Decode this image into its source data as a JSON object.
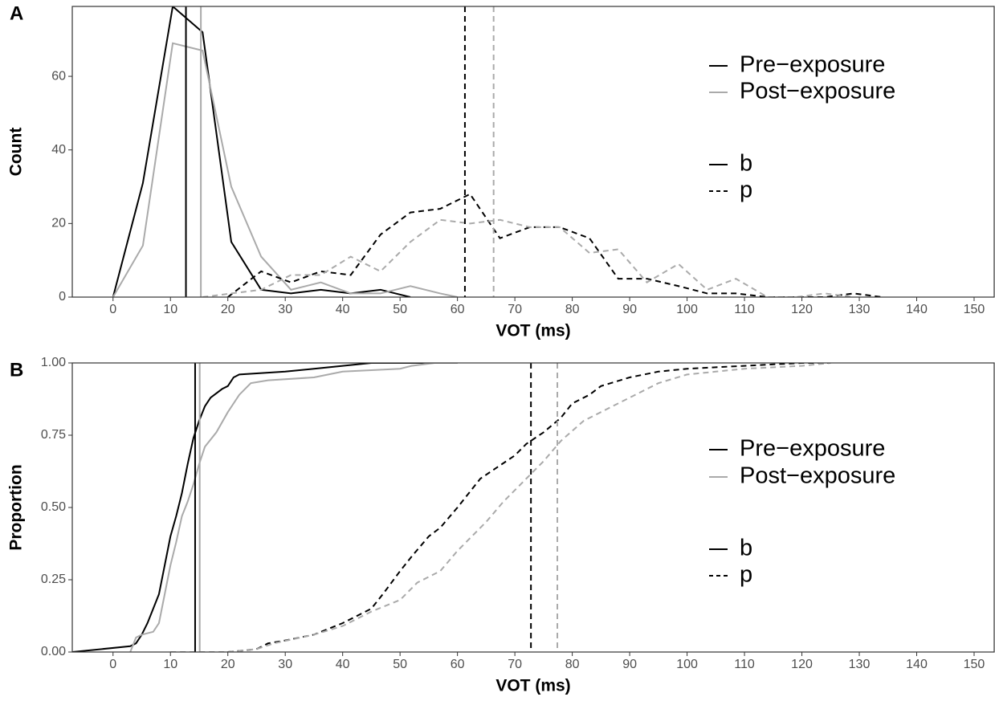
{
  "chart_data": [
    {
      "type": "line",
      "panel_label": "A",
      "x_label": "VOT (ms)",
      "y_label": "Count",
      "xlim": [
        -7.1,
        153.5
      ],
      "ylim": [
        0,
        79
      ],
      "xticks": [
        0,
        10,
        20,
        30,
        40,
        50,
        60,
        70,
        80,
        90,
        100,
        110,
        120,
        130,
        140,
        150
      ],
      "yticks": [
        0,
        20,
        40,
        60
      ],
      "legend": [
        {
          "name": "Pre−exposure",
          "color": "#000000"
        },
        {
          "name": "Post−exposure",
          "color": "#aaaaaa"
        }
      ],
      "linetype_legend": [
        {
          "name": "b",
          "dash": "solid"
        },
        {
          "name": "p",
          "dash": "dashed"
        }
      ],
      "series": [
        {
          "color": "#000000",
          "dash": "solid",
          "x": [
            0,
            5.2,
            10.4,
            15.6,
            20.6,
            25.8,
            31,
            36.2,
            41.4,
            46.6,
            51.8
          ],
          "values": [
            0,
            31,
            79,
            72,
            15,
            2,
            1,
            2,
            1,
            2,
            0
          ]
        },
        {
          "color": "#aaaaaa",
          "dash": "solid",
          "x": [
            0,
            5.2,
            10.4,
            15.6,
            20.6,
            25.8,
            31,
            36.2,
            41.4,
            46.6,
            51.8,
            57,
            60
          ],
          "values": [
            0,
            14,
            69,
            67,
            30,
            11,
            2,
            4,
            1,
            1,
            3,
            1,
            0
          ]
        },
        {
          "color": "#000000",
          "dash": "dashed",
          "x": [
            20,
            25.8,
            31,
            36.2,
            41.4,
            46.6,
            51.8,
            57,
            62.2,
            67.4,
            72.6,
            77.8,
            83,
            88,
            93,
            98.5,
            103.5,
            108.5,
            114,
            119,
            124,
            129,
            134
          ],
          "values": [
            0,
            7,
            4,
            7,
            6,
            17,
            23,
            24,
            28,
            16,
            19,
            19,
            16,
            5,
            5,
            3,
            1,
            1,
            0,
            0,
            0,
            1,
            0
          ]
        },
        {
          "color": "#aaaaaa",
          "dash": "dashed",
          "x": [
            15.6,
            20.6,
            25.8,
            31,
            36.2,
            41.4,
            46.6,
            51.8,
            57,
            62.2,
            67.4,
            72.6,
            77.8,
            83,
            88,
            93,
            98.5,
            103.5,
            108.5,
            114,
            119,
            124,
            129
          ],
          "values": [
            0,
            1,
            2,
            6,
            6,
            11,
            7,
            15,
            21,
            20,
            21,
            19,
            19,
            12,
            13,
            4,
            9,
            2,
            5,
            0,
            0,
            1,
            0
          ]
        }
      ],
      "vlines": [
        {
          "x": 12.7,
          "color": "#000000",
          "dash": "solid"
        },
        {
          "x": 15.3,
          "color": "#aaaaaa",
          "dash": "solid"
        },
        {
          "x": 61.3,
          "color": "#000000",
          "dash": "dashed"
        },
        {
          "x": 66.3,
          "color": "#aaaaaa",
          "dash": "dashed"
        }
      ]
    },
    {
      "type": "line",
      "panel_label": "B",
      "x_label": "VOT (ms)",
      "y_label": "Proportion",
      "xlim": [
        -7.1,
        153.5
      ],
      "ylim": [
        0,
        1
      ],
      "xticks": [
        0,
        10,
        20,
        30,
        40,
        50,
        60,
        70,
        80,
        90,
        100,
        110,
        120,
        130,
        140,
        150
      ],
      "yticks": [
        {
          "value": 0,
          "label": "0.00"
        },
        {
          "value": 0.25,
          "label": "0.25"
        },
        {
          "value": 0.5,
          "label": "0.50"
        },
        {
          "value": 0.75,
          "label": "0.75"
        },
        {
          "value": 1,
          "label": "1.00"
        }
      ],
      "legend": [
        {
          "name": "Pre−exposure",
          "color": "#000000"
        },
        {
          "name": "Post−exposure",
          "color": "#aaaaaa"
        }
      ],
      "linetype_legend": [
        {
          "name": "b",
          "dash": "solid"
        },
        {
          "name": "p",
          "dash": "dashed"
        }
      ],
      "series": [
        {
          "color": "#000000",
          "dash": "solid",
          "x": [
            -7.1,
            3,
            4,
            5,
            6,
            7,
            8,
            9,
            10,
            11,
            12,
            13,
            14,
            15,
            16,
            17,
            19,
            20,
            21,
            22,
            30,
            35,
            40,
            45,
            60
          ],
          "values": [
            0,
            0.02,
            0.03,
            0.06,
            0.1,
            0.15,
            0.2,
            0.3,
            0.4,
            0.47,
            0.55,
            0.65,
            0.74,
            0.8,
            0.85,
            0.88,
            0.91,
            0.92,
            0.95,
            0.96,
            0.97,
            0.98,
            0.99,
            1,
            1
          ]
        },
        {
          "color": "#aaaaaa",
          "dash": "solid",
          "x": [
            3,
            4,
            5,
            7,
            8,
            9,
            10,
            11,
            12,
            13,
            14,
            15,
            16,
            18,
            20,
            22,
            24,
            27,
            35,
            40,
            50,
            52,
            56,
            60
          ],
          "values": [
            0,
            0.05,
            0.06,
            0.07,
            0.1,
            0.2,
            0.3,
            0.38,
            0.47,
            0.52,
            0.58,
            0.65,
            0.71,
            0.76,
            0.83,
            0.89,
            0.93,
            0.94,
            0.95,
            0.97,
            0.98,
            0.99,
            1,
            1
          ]
        },
        {
          "color": "#000000",
          "dash": "dashed",
          "x": [
            20,
            25,
            27,
            30,
            35,
            40,
            45,
            47,
            50,
            52,
            55,
            57,
            60,
            62,
            64,
            67,
            70,
            72,
            75,
            78,
            80,
            83,
            85,
            90,
            95,
            100,
            110,
            120,
            125
          ],
          "values": [
            0,
            0.01,
            0.03,
            0.04,
            0.06,
            0.1,
            0.15,
            0.2,
            0.28,
            0.33,
            0.4,
            0.43,
            0.5,
            0.55,
            0.6,
            0.64,
            0.68,
            0.72,
            0.76,
            0.81,
            0.86,
            0.89,
            0.92,
            0.95,
            0.97,
            0.98,
            0.99,
            1,
            1
          ]
        },
        {
          "color": "#aaaaaa",
          "dash": "dashed",
          "x": [
            10,
            20,
            25,
            28,
            35,
            40,
            45,
            50,
            53,
            57,
            60,
            65,
            68,
            72,
            75,
            78,
            82,
            85,
            90,
            95,
            100,
            105,
            110,
            120,
            125
          ],
          "values": [
            0,
            0,
            0.01,
            0.03,
            0.06,
            0.09,
            0.14,
            0.18,
            0.24,
            0.28,
            0.35,
            0.45,
            0.52,
            0.6,
            0.66,
            0.73,
            0.8,
            0.83,
            0.88,
            0.93,
            0.96,
            0.97,
            0.98,
            0.99,
            1
          ]
        }
      ],
      "vlines": [
        {
          "x": 14.3,
          "color": "#000000",
          "dash": "solid"
        },
        {
          "x": 15.1,
          "color": "#aaaaaa",
          "dash": "solid"
        },
        {
          "x": 72.8,
          "color": "#000000",
          "dash": "dashed"
        },
        {
          "x": 77.4,
          "color": "#aaaaaa",
          "dash": "dashed"
        }
      ]
    }
  ]
}
